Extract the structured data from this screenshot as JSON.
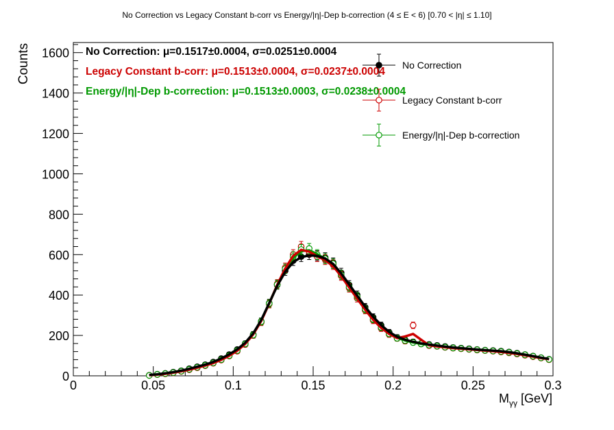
{
  "chart_data": {
    "type": "scatter",
    "title": "No Correction vs Legacy Constant b-corr vs Energy/|η|-Dep b-correction   (4 ≤ E < 6)   [0.70 < |η| ≤ 1.10]",
    "xlabel": "Mγγ [GeV]",
    "ylabel": "Counts",
    "xlim": [
      0,
      0.3
    ],
    "ylim": [
      0,
      1650
    ],
    "x_ticks": [
      0,
      0.05,
      0.1,
      0.15,
      0.2,
      0.25,
      0.3
    ],
    "x_tick_labels": [
      "0",
      "0.05",
      "0.1",
      "0.15",
      "0.2",
      "0.25",
      "0.3"
    ],
    "y_ticks": [
      0,
      200,
      400,
      600,
      800,
      1000,
      1200,
      1400,
      1600
    ],
    "y_tick_labels": [
      "0",
      "200",
      "400",
      "600",
      "800",
      "1000",
      "1200",
      "1400",
      "1600"
    ],
    "grid": false,
    "legend_position": "top-right",
    "fit_texts": [
      {
        "label": "No Correction:",
        "value": "μ=0.1517±0.0004, σ=0.0251±0.0004",
        "color": "#000000"
      },
      {
        "label": "Legacy Constant b-corr:",
        "value": "μ=0.1513±0.0004, σ=0.0237±0.0004",
        "color": "#cc0000"
      },
      {
        "label": "Energy/|η|-Dep b-correction:",
        "value": "μ=0.1513±0.0003, σ=0.0238±0.0004",
        "color": "#009900"
      }
    ],
    "series": [
      {
        "name": "No Correction",
        "color": "#000000",
        "marker": "filled-circle",
        "x": [
          0.0475,
          0.0525,
          0.0575,
          0.0625,
          0.0675,
          0.0725,
          0.0775,
          0.0825,
          0.0875,
          0.0925,
          0.0975,
          0.1025,
          0.1075,
          0.1125,
          0.1175,
          0.1225,
          0.1275,
          0.1325,
          0.1375,
          0.1425,
          0.1475,
          0.1525,
          0.1575,
          0.1625,
          0.1675,
          0.1725,
          0.1775,
          0.1825,
          0.1875,
          0.1925,
          0.1975,
          0.2025,
          0.2075,
          0.2125,
          0.2175,
          0.2225,
          0.2275,
          0.2325,
          0.2375,
          0.2425,
          0.2475,
          0.2525,
          0.2575,
          0.2625,
          0.2675,
          0.2725,
          0.2775,
          0.2825,
          0.2875,
          0.2925,
          0.2975
        ],
        "y": [
          3,
          8,
          12,
          18,
          25,
          35,
          45,
          55,
          68,
          85,
          105,
          130,
          160,
          205,
          270,
          360,
          450,
          520,
          570,
          590,
          600,
          595,
          585,
          560,
          510,
          450,
          400,
          340,
          290,
          250,
          215,
          190,
          178,
          168,
          160,
          155,
          150,
          145,
          140,
          137,
          134,
          130,
          127,
          125,
          122,
          118,
          112,
          105,
          98,
          90,
          82
        ]
      },
      {
        "name": "Legacy Constant b-corr",
        "color": "#cc0000",
        "marker": "open-circle",
        "x": [
          0.0475,
          0.0525,
          0.0575,
          0.0625,
          0.0675,
          0.0725,
          0.0775,
          0.0825,
          0.0875,
          0.0925,
          0.0975,
          0.1025,
          0.1075,
          0.1125,
          0.1175,
          0.1225,
          0.1275,
          0.1325,
          0.1375,
          0.1425,
          0.1475,
          0.1525,
          0.1575,
          0.1625,
          0.1675,
          0.1725,
          0.1775,
          0.1825,
          0.1875,
          0.1925,
          0.1975,
          0.2025,
          0.2075,
          0.2125,
          0.2175,
          0.2225,
          0.2275,
          0.2325,
          0.2375,
          0.2425,
          0.2475,
          0.2525,
          0.2575,
          0.2625,
          0.2675,
          0.2725,
          0.2775,
          0.2825,
          0.2875,
          0.2925,
          0.2975
        ],
        "y": [
          2,
          6,
          10,
          15,
          22,
          30,
          40,
          50,
          62,
          78,
          98,
          122,
          155,
          200,
          265,
          355,
          455,
          535,
          600,
          640,
          615,
          590,
          575,
          550,
          495,
          435,
          385,
          325,
          275,
          235,
          205,
          185,
          172,
          250,
          158,
          150,
          146,
          141,
          137,
          134,
          131,
          128,
          125,
          122,
          118,
          114,
          108,
          102,
          95,
          88,
          80
        ]
      },
      {
        "name": "Energy/|η|-Dep b-correction",
        "color": "#009900",
        "marker": "open-circle",
        "x": [
          0.0475,
          0.0525,
          0.0575,
          0.0625,
          0.0675,
          0.0725,
          0.0775,
          0.0825,
          0.0875,
          0.0925,
          0.0975,
          0.1025,
          0.1075,
          0.1125,
          0.1175,
          0.1225,
          0.1275,
          0.1325,
          0.1375,
          0.1425,
          0.1475,
          0.1525,
          0.1575,
          0.1625,
          0.1675,
          0.1725,
          0.1775,
          0.1825,
          0.1875,
          0.1925,
          0.1975,
          0.2025,
          0.2075,
          0.2125,
          0.2175,
          0.2225,
          0.2275,
          0.2325,
          0.2375,
          0.2425,
          0.2475,
          0.2525,
          0.2575,
          0.2625,
          0.2675,
          0.2725,
          0.2775,
          0.2825,
          0.2875,
          0.2925,
          0.2975
        ],
        "y": [
          2,
          7,
          11,
          16,
          23,
          32,
          42,
          52,
          64,
          80,
          100,
          125,
          158,
          202,
          268,
          358,
          452,
          530,
          590,
          625,
          630,
          600,
          580,
          555,
          500,
          440,
          392,
          330,
          280,
          240,
          208,
          186,
          174,
          165,
          158,
          152,
          147,
          142,
          138,
          135,
          132,
          129,
          126,
          123,
          120,
          116,
          110,
          104,
          97,
          89,
          81
        ]
      }
    ]
  }
}
